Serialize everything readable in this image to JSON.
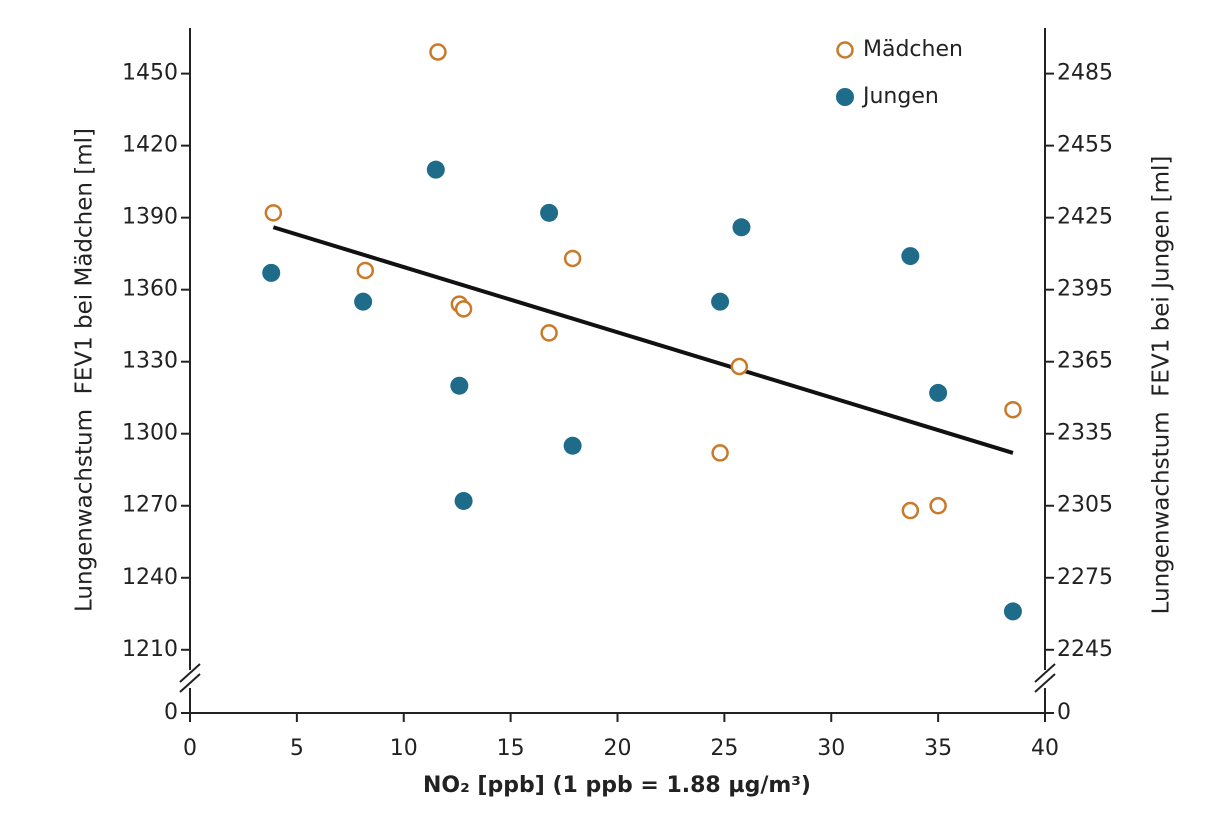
{
  "chart_data": {
    "type": "scatter",
    "xlabel": "NO₂ [ppb] (1 ppb = 1.88 µg/m³)",
    "ylabel": "Lungenwachstum  FEV1 bei Mädchen [ml]",
    "y2label": "Lungenwachstum  FEV1 bei Jungen [ml]",
    "xlim": [
      0,
      40
    ],
    "xticks": [
      0,
      5,
      10,
      15,
      20,
      25,
      30,
      35,
      40
    ],
    "ylim": [
      1197,
      1469
    ],
    "yticks": [
      0,
      1210,
      1240,
      1270,
      1300,
      1330,
      1360,
      1390,
      1420,
      1450
    ],
    "y2lim": [
      2232,
      2504
    ],
    "y2ticks": [
      0,
      2245,
      2275,
      2305,
      2335,
      2365,
      2395,
      2425,
      2455,
      2485
    ],
    "axis_break": true,
    "legend": "upper right",
    "series": [
      {
        "name": "Mädchen",
        "color": "#c87a2a",
        "marker": "open",
        "x": [
          3.9,
          8.2,
          11.6,
          12.6,
          12.8,
          16.8,
          17.9,
          24.8,
          25.7,
          33.7,
          35.0,
          38.5
        ],
        "values": [
          1392,
          1368,
          1459,
          1354,
          1352,
          1342,
          1373,
          1292,
          1328,
          1268,
          1270,
          1310
        ]
      },
      {
        "name": "Jungen",
        "color": "#1f6b8a",
        "marker": "filled",
        "axis": "y2",
        "x": [
          3.8,
          8.1,
          11.5,
          12.6,
          12.8,
          16.8,
          17.9,
          24.8,
          25.8,
          33.7,
          35.0,
          38.5
        ],
        "values": [
          2402,
          2390,
          2445,
          2355,
          2307,
          2427,
          2330,
          2390,
          2421,
          2409,
          2352,
          2261
        ]
      }
    ],
    "trendline": {
      "x": [
        3.9,
        38.5
      ],
      "values": [
        1386,
        1292
      ],
      "color": "#111111"
    }
  }
}
